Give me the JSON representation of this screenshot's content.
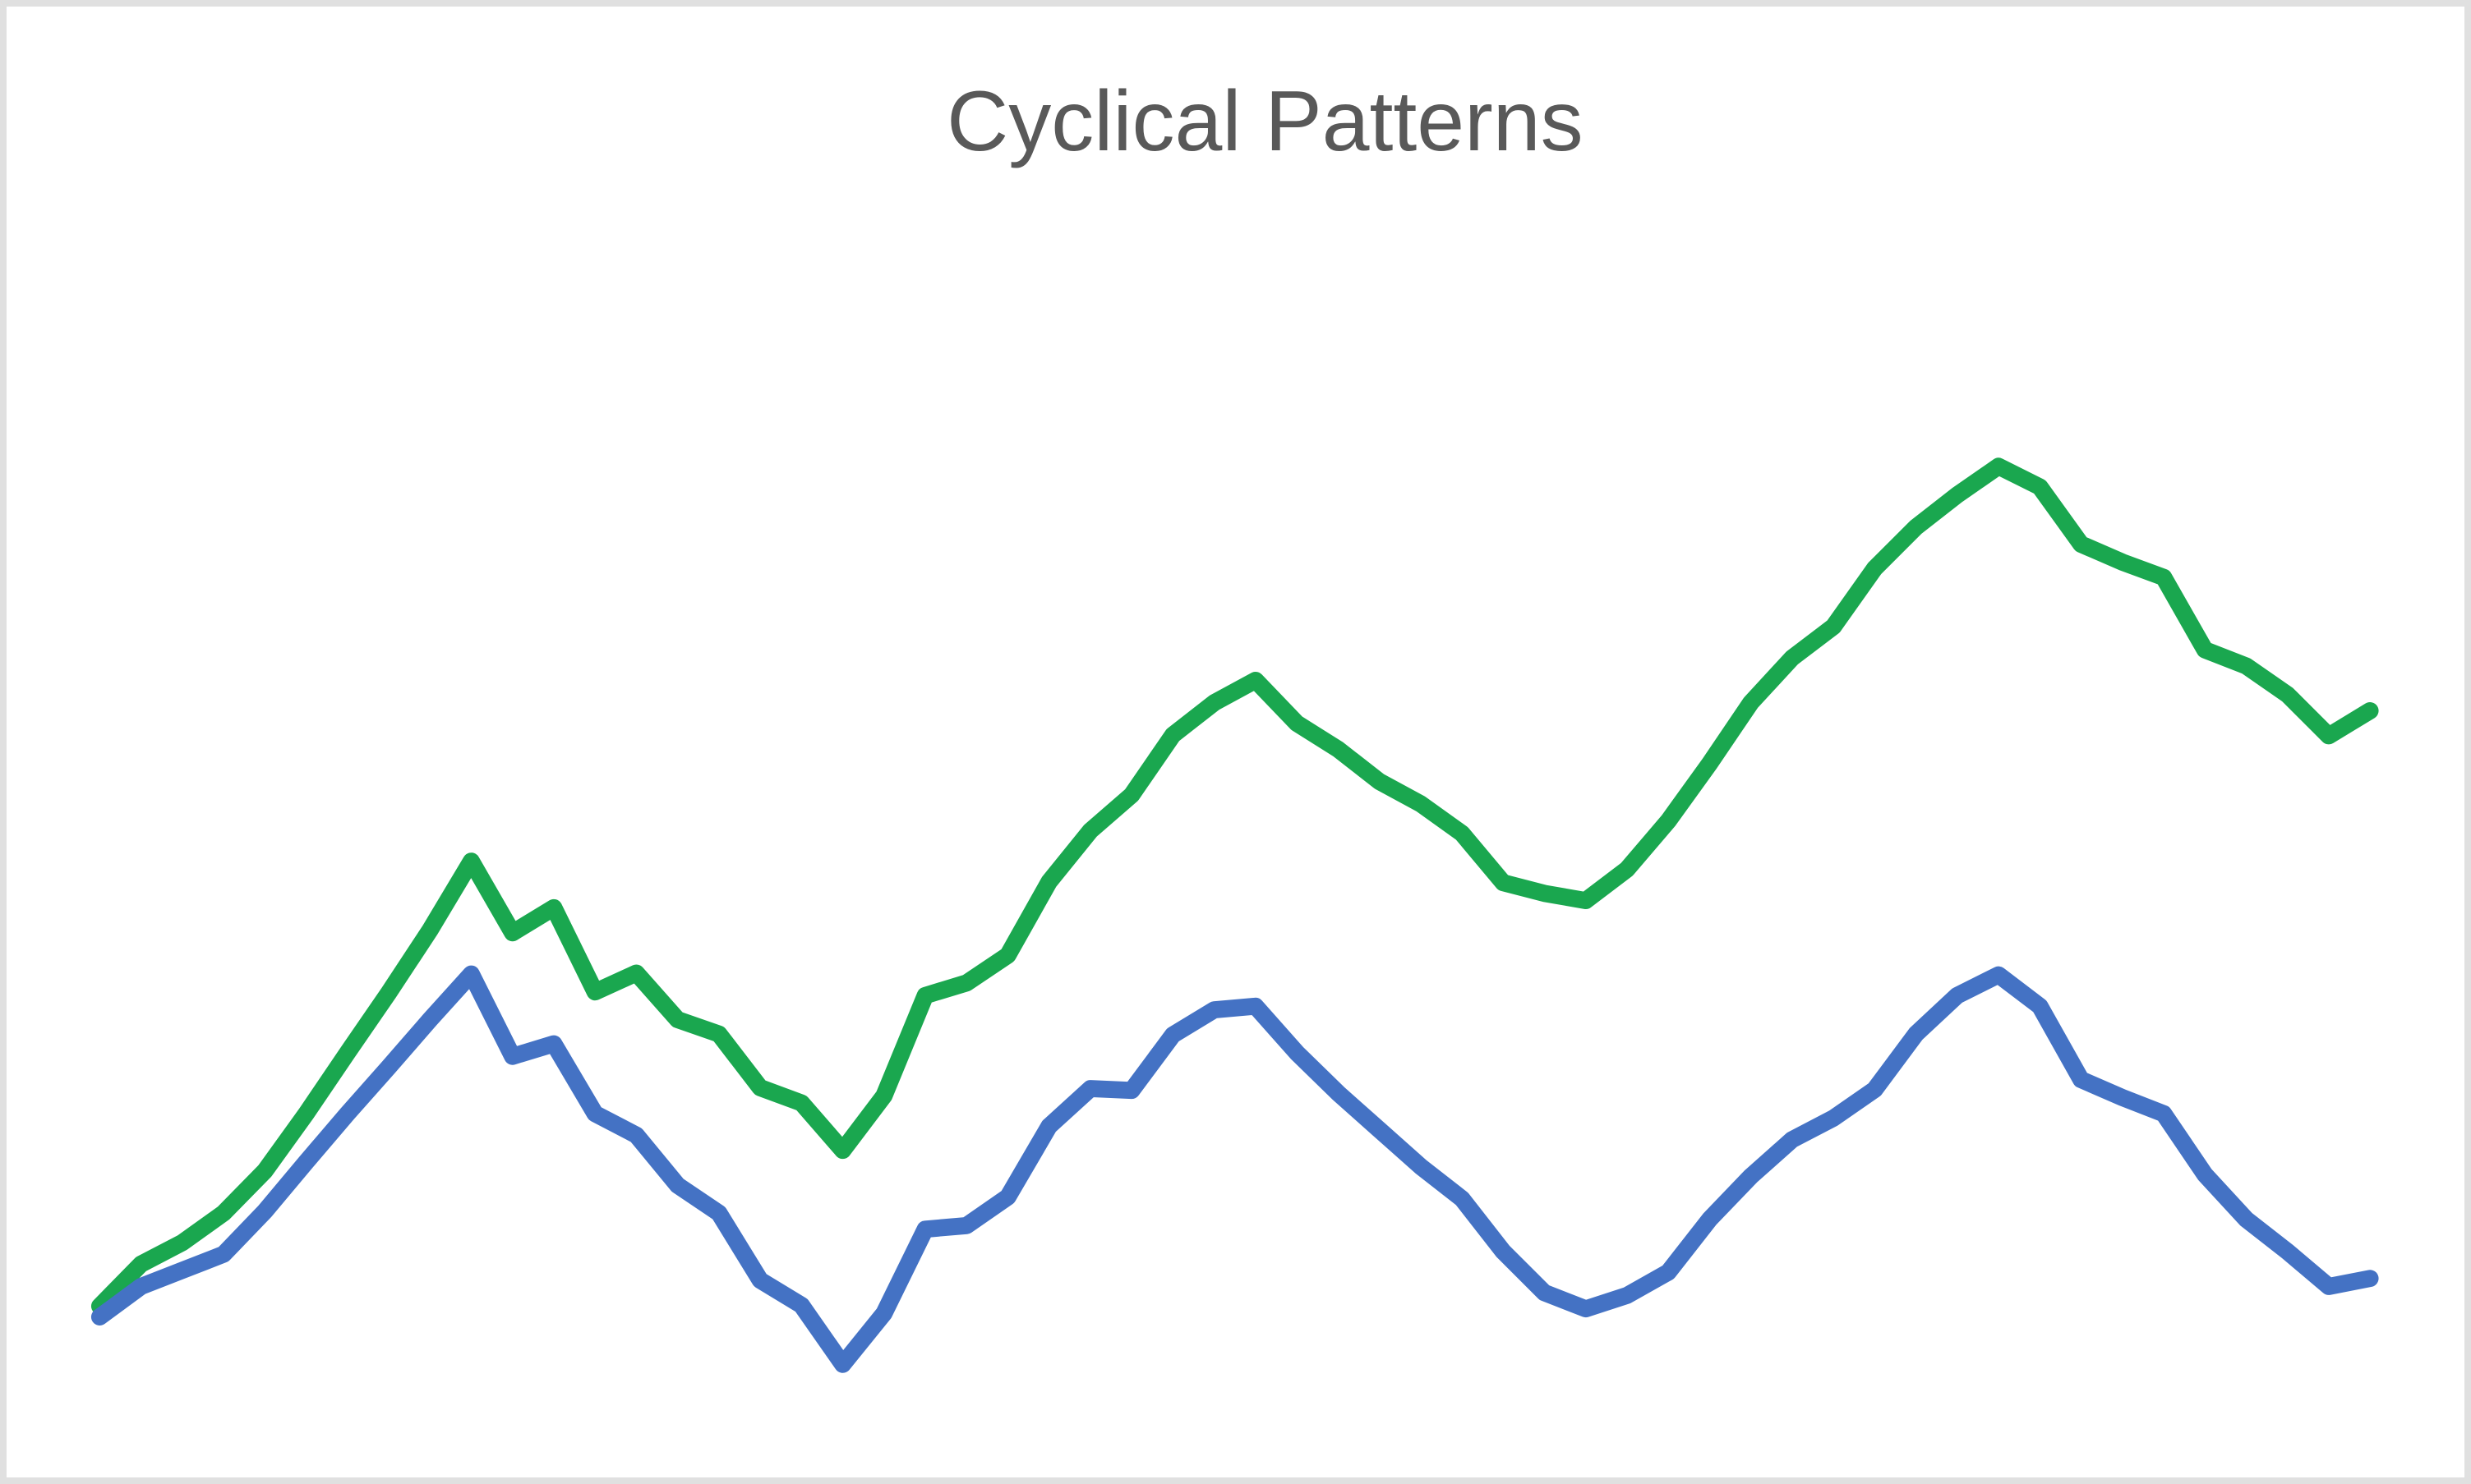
{
  "title": "Cyclical Patterns",
  "title_color": "#595959",
  "canvas": {
    "background": "#ffffff",
    "border_color": "#e0e0e0"
  },
  "chart_data": {
    "type": "line",
    "title": "Cyclical Patterns",
    "xlabel": "",
    "ylabel": "",
    "x": "56 evenly spaced unlabeled points (no axis ticks shown)",
    "ylim": [
      0,
      110
    ],
    "grid": false,
    "legend": false,
    "axes_visible": false,
    "line_width": 21,
    "series": [
      {
        "name": "green",
        "color": "#1aa74f",
        "values": [
          9.4,
          14.1,
          16.5,
          19.8,
          24.5,
          30.9,
          37.7,
          44.4,
          51.4,
          59.1,
          51.1,
          53.9,
          44.5,
          46.6,
          41.4,
          39.8,
          33.8,
          32.1,
          26.8,
          32.9,
          44.1,
          45.5,
          48.6,
          56.8,
          62.5,
          66.5,
          73.2,
          76.8,
          79.3,
          74.5,
          71.6,
          68.0,
          65.5,
          62.2,
          56.7,
          55.5,
          54.7,
          58.2,
          63.6,
          70.0,
          76.8,
          81.8,
          85.3,
          91.8,
          96.4,
          100.0,
          103.2,
          100.9,
          94.5,
          92.5,
          90.8,
          82.7,
          80.9,
          77.7,
          73.1,
          75.9
        ]
      },
      {
        "name": "blue",
        "color": "#4472c4",
        "values": [
          8.2,
          11.6,
          13.4,
          15.2,
          20.0,
          25.5,
          30.9,
          36.1,
          41.4,
          46.5,
          37.3,
          38.7,
          30.9,
          28.5,
          22.9,
          19.8,
          12.3,
          9.5,
          2.9,
          8.6,
          18.0,
          18.4,
          21.6,
          29.5,
          33.7,
          33.5,
          39.7,
          42.5,
          42.9,
          37.7,
          33.2,
          29.1,
          25.0,
          21.4,
          15.5,
          10.9,
          9.1,
          10.6,
          13.2,
          19.1,
          23.9,
          28.0,
          30.4,
          33.6,
          39.8,
          44.1,
          46.4,
          42.9,
          34.7,
          32.7,
          30.9,
          24.1,
          19.1,
          15.5,
          11.6,
          12.5
        ]
      }
    ]
  }
}
